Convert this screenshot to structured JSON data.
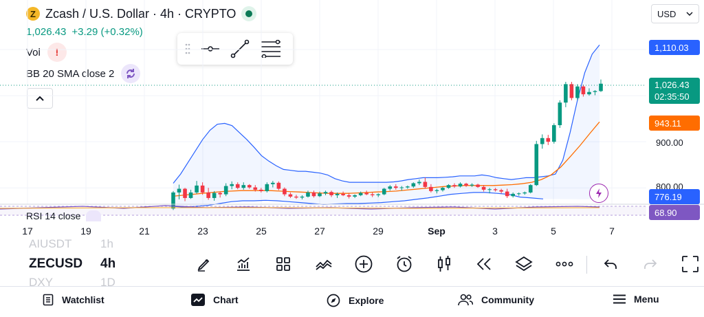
{
  "header": {
    "coin_symbol": "Z",
    "title": "Zcash / U.S. Dollar · 4h · CRYPTO",
    "price": "1,026.43",
    "change": "+3.29 (+0.32%)",
    "currency": "USD"
  },
  "indicators": {
    "vol_label": "Vol",
    "bb_label": "BB 20 SMA close 2",
    "rsi_label": "RSI 14 close"
  },
  "price_axis": {
    "bb_upper": "1,110.03",
    "last_price": "1,026.43",
    "countdown": "02:35:50",
    "bb_basis": "943.11",
    "tick_900": "900.00",
    "tick_800": "800.00",
    "bb_lower": "776.19",
    "rsi_value": "68.90"
  },
  "colors": {
    "up": "#089981",
    "down": "#f23645",
    "bb_band": "#2962ff",
    "bb_basis": "#ff6d00",
    "rsi": "#7e57c2"
  },
  "time_axis": [
    "17",
    "19",
    "21",
    "23",
    "25",
    "27",
    "29",
    "Sep",
    "3",
    "5",
    "7"
  ],
  "watchlist_peek": {
    "above": "AIUSDT",
    "above_interval": "1h",
    "current_symbol": "ZECUSD",
    "current_interval": "4h",
    "below": "DXY",
    "below_interval": "1D"
  },
  "toolbar_icons": [
    "brush-icon",
    "indicators-icon",
    "layouts-icon",
    "compare-icon",
    "add-icon",
    "alert-icon",
    "candles-icon",
    "replay-icon",
    "layers-icon",
    "more-icon",
    "undo-icon",
    "redo-icon",
    "fullscreen-icon"
  ],
  "bottom_nav": {
    "watchlist": "Watchlist",
    "chart": "Chart",
    "explore": "Explore",
    "community": "Community",
    "menu": "Menu"
  },
  "chart_data": {
    "type": "candlestick",
    "symbol": "ZECUSD",
    "interval": "4h",
    "ylim": [
      760,
      1130
    ],
    "candles": [
      [
        755,
        793,
        752,
        790
      ],
      [
        790,
        807,
        775,
        798
      ],
      [
        798,
        800,
        771,
        778
      ],
      [
        778,
        796,
        776,
        790
      ],
      [
        790,
        815,
        787,
        805
      ],
      [
        805,
        812,
        785,
        790
      ],
      [
        790,
        800,
        774,
        778
      ],
      [
        778,
        793,
        772,
        789
      ],
      [
        789,
        792,
        779,
        786
      ],
      [
        786,
        810,
        782,
        804
      ],
      [
        804,
        814,
        797,
        808
      ],
      [
        808,
        812,
        797,
        800
      ],
      [
        800,
        812,
        796,
        806
      ],
      [
        806,
        808,
        798,
        801
      ],
      [
        801,
        806,
        792,
        796
      ],
      [
        796,
        800,
        790,
        793
      ],
      [
        793,
        812,
        790,
        808
      ],
      [
        808,
        815,
        801,
        811
      ],
      [
        811,
        814,
        795,
        798
      ],
      [
        798,
        801,
        782,
        786
      ],
      [
        786,
        790,
        778,
        781
      ],
      [
        781,
        785,
        776,
        779
      ],
      [
        779,
        784,
        775,
        781
      ],
      [
        781,
        794,
        779,
        790
      ],
      [
        790,
        794,
        779,
        782
      ],
      [
        782,
        792,
        780,
        788
      ],
      [
        788,
        794,
        784,
        791
      ],
      [
        791,
        794,
        780,
        784
      ],
      [
        784,
        790,
        778,
        787
      ],
      [
        787,
        792,
        782,
        784
      ],
      [
        784,
        788,
        777,
        781
      ],
      [
        781,
        786,
        778,
        784
      ],
      [
        784,
        792,
        782,
        789
      ],
      [
        789,
        794,
        784,
        786
      ],
      [
        786,
        790,
        780,
        784
      ],
      [
        784,
        788,
        780,
        786
      ],
      [
        786,
        800,
        784,
        798
      ],
      [
        798,
        806,
        794,
        803
      ],
      [
        803,
        808,
        796,
        800
      ],
      [
        800,
        804,
        794,
        801
      ],
      [
        801,
        805,
        798,
        803
      ],
      [
        803,
        812,
        800,
        810
      ],
      [
        810,
        818,
        806,
        813
      ],
      [
        813,
        822,
        798,
        802
      ],
      [
        802,
        808,
        790,
        793
      ],
      [
        793,
        798,
        788,
        795
      ],
      [
        795,
        802,
        792,
        800
      ],
      [
        800,
        808,
        798,
        806
      ],
      [
        806,
        810,
        800,
        803
      ],
      [
        803,
        812,
        801,
        809
      ],
      [
        809,
        811,
        802,
        805
      ],
      [
        805,
        810,
        802,
        807
      ],
      [
        807,
        809,
        800,
        802
      ],
      [
        802,
        806,
        792,
        796
      ],
      [
        796,
        800,
        788,
        797
      ],
      [
        797,
        800,
        792,
        795
      ],
      [
        795,
        798,
        788,
        792
      ],
      [
        792,
        798,
        778,
        782
      ],
      [
        782,
        790,
        779,
        787
      ],
      [
        787,
        790,
        783,
        788
      ],
      [
        788,
        792,
        785,
        790
      ],
      [
        790,
        808,
        788,
        806
      ],
      [
        806,
        902,
        804,
        895
      ],
      [
        895,
        916,
        885,
        908
      ],
      [
        908,
        915,
        893,
        900
      ],
      [
        900,
        940,
        896,
        936
      ],
      [
        936,
        990,
        930,
        985
      ],
      [
        985,
        1030,
        975,
        1025
      ],
      [
        1025,
        1030,
        990,
        995
      ],
      [
        995,
        1025,
        990,
        1020
      ],
      [
        1020,
        1024,
        998,
        1003
      ],
      [
        1003,
        1016,
        1000,
        1008
      ],
      [
        1008,
        1012,
        1001,
        1010
      ],
      [
        1010,
        1035,
        1008,
        1026
      ]
    ],
    "bb_upper": [
      810,
      830,
      855,
      880,
      905,
      925,
      938,
      940,
      935,
      920,
      905,
      888,
      870,
      858,
      848,
      840,
      838,
      836,
      836,
      834,
      832,
      828,
      820,
      815,
      812,
      812,
      812,
      812,
      812,
      812,
      813,
      815,
      818,
      820,
      822,
      822,
      822,
      823,
      824,
      826,
      826,
      826,
      828,
      826,
      822,
      820,
      818,
      820,
      822,
      822,
      824,
      826,
      830,
      860,
      920,
      990,
      1050,
      1090,
      1110
    ],
    "bb_basis": [
      782,
      784,
      786,
      788,
      790,
      792,
      793,
      794,
      794,
      794,
      794,
      793,
      792,
      791,
      790,
      789,
      788,
      788,
      788,
      789,
      790,
      791,
      792,
      793,
      795,
      797,
      799,
      801,
      803,
      804,
      805,
      805,
      805,
      805,
      806,
      807,
      809,
      812,
      818,
      828,
      845,
      868,
      892,
      918,
      943
    ],
    "bb_lower": [
      760,
      758,
      760,
      762,
      766,
      770,
      772,
      772,
      773,
      772,
      770,
      768,
      766,
      764,
      765,
      766,
      766,
      767,
      768,
      770,
      772,
      775,
      778,
      782,
      786,
      788,
      790,
      790,
      788,
      786,
      780,
      778,
      776
    ]
  }
}
